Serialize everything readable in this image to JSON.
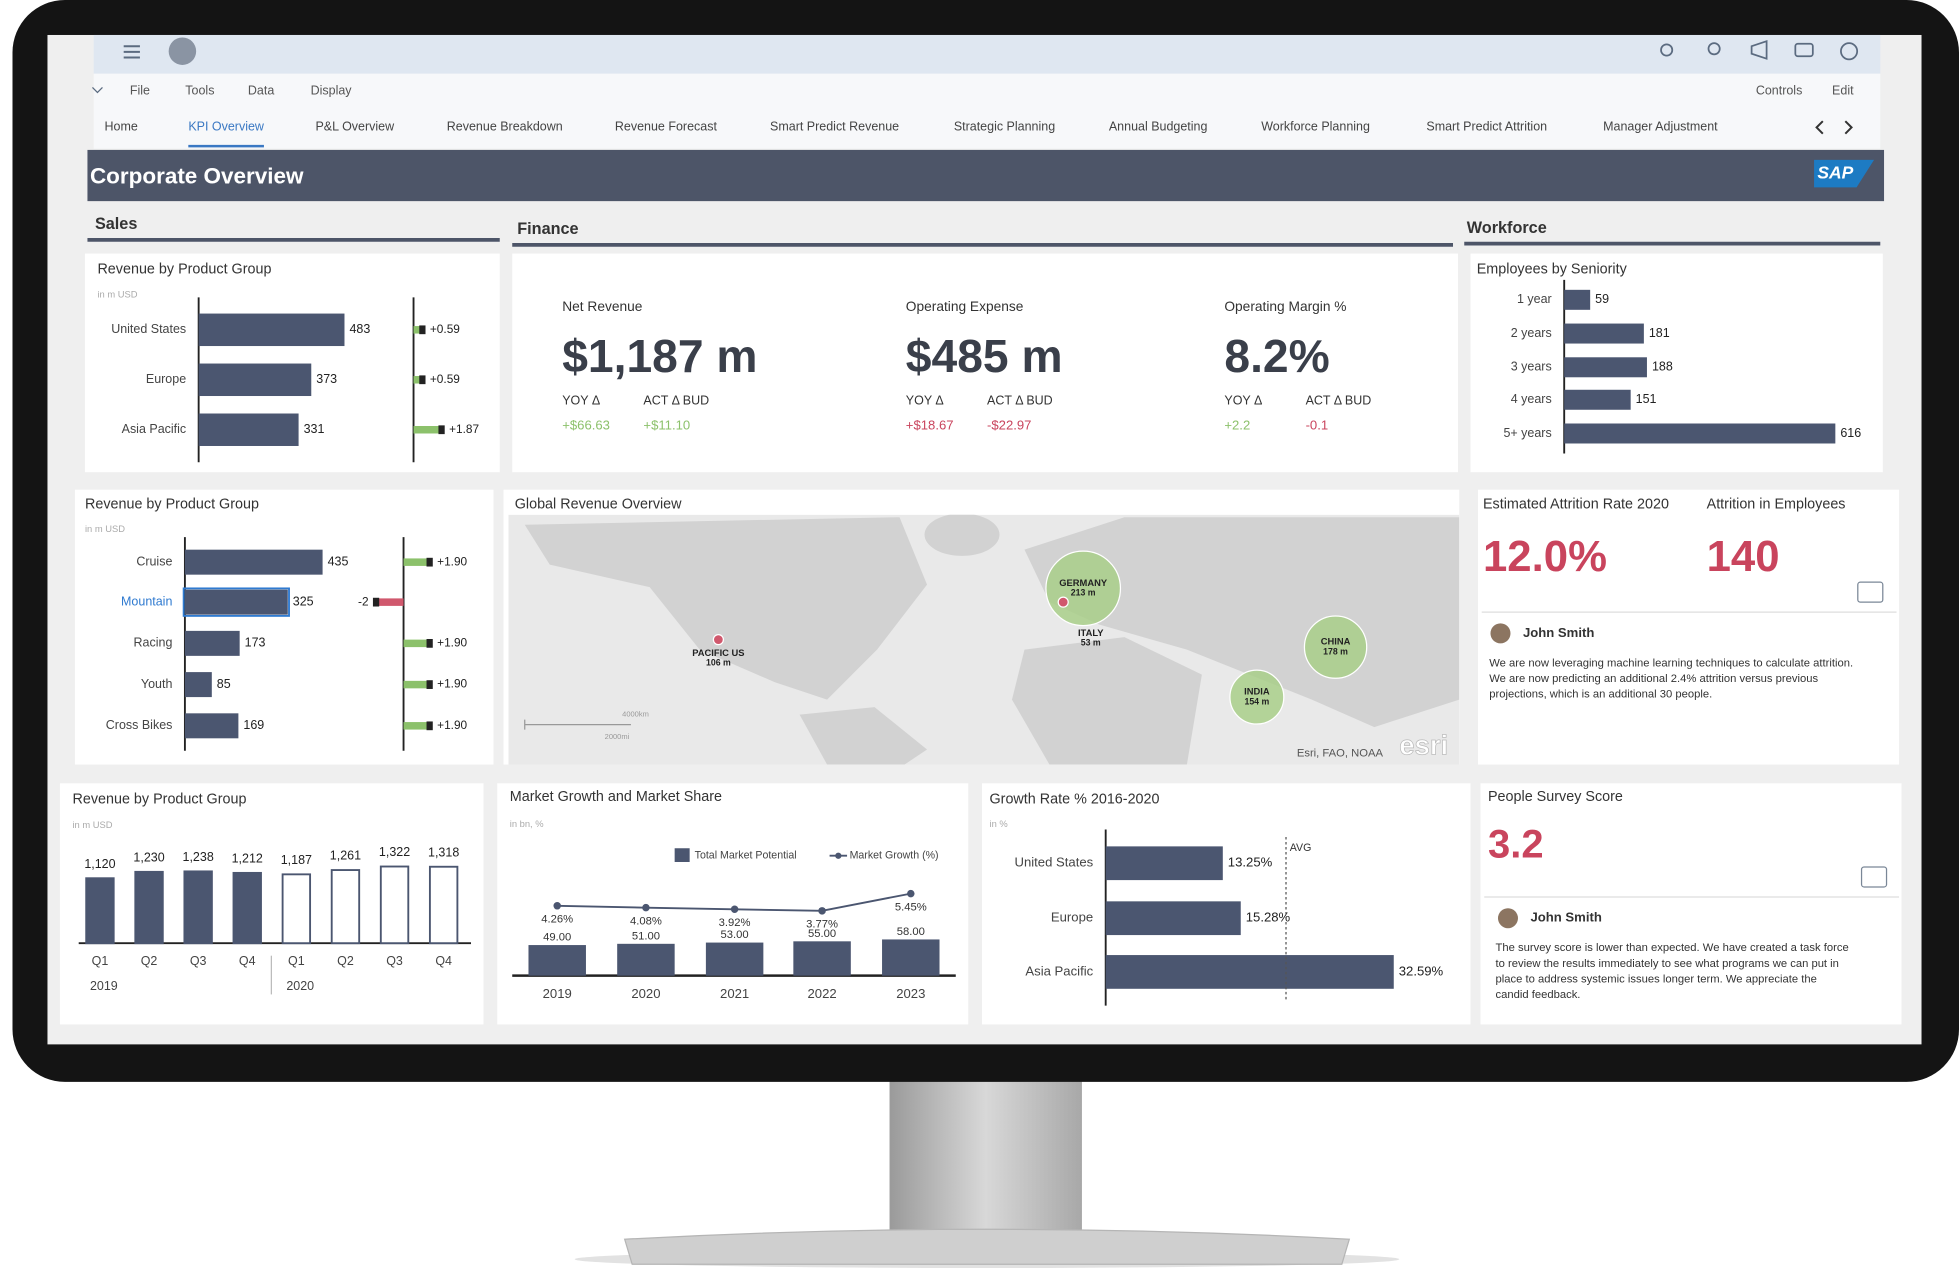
{
  "shell": {
    "menu": [
      "File",
      "Tools",
      "Data",
      "Display"
    ],
    "menu_right": [
      "Controls",
      "Edit"
    ],
    "tabs": [
      "Home",
      "KPI Overview",
      "P&L Overview",
      "Revenue Breakdown",
      "Revenue Forecast",
      "Smart Predict Revenue",
      "Strategic Planning",
      "Annual Budgeting",
      "Workforce Planning",
      "Smart Predict Attrition",
      "Manager Adjustment"
    ],
    "active_tab": 1
  },
  "page_title": "Corporate Overview",
  "logo": "SAP",
  "sections": [
    "Sales",
    "Finance",
    "Workforce"
  ],
  "sales_region": {
    "title": "Revenue by Product Group",
    "subtitle": "in m USD",
    "categories": [
      "United States",
      "Europe",
      "Asia Pacific"
    ],
    "values": [
      483,
      373,
      331
    ],
    "xlim": [
      0,
      600
    ],
    "variance": [
      0.59,
      0.59,
      1.87
    ],
    "variance_labels": [
      "+0.59",
      "+0.59",
      "+1.87"
    ],
    "variance_lim": [
      -2,
      2
    ],
    "color": "#4b5670"
  },
  "sales_product": {
    "title": "Revenue by Product Group",
    "subtitle": "in m USD",
    "categories": [
      "Cruise",
      "Mountain",
      "Racing",
      "Youth",
      "Cross Bikes"
    ],
    "values": [
      435,
      325,
      173,
      85,
      169
    ],
    "xlim": [
      0,
      600
    ],
    "variance": [
      1.9,
      -2,
      1.9,
      1.9,
      1.9
    ],
    "variance_labels": [
      "+1.90",
      "-2",
      "+1.90",
      "+1.90",
      "+1.90"
    ],
    "variance_lim": [
      -2,
      2
    ],
    "selected": 1,
    "color": "#4b5670"
  },
  "sales_quarter": {
    "title": "Revenue by Product Group",
    "subtitle": "in m USD",
    "ylim": [
      0,
      1400
    ],
    "color": "#4b5670",
    "groups": [
      {
        "label": "2019",
        "style": "solid",
        "categories": [
          "Q1",
          "Q2",
          "Q3",
          "Q4"
        ],
        "values": [
          1120,
          1230,
          1238,
          1212
        ],
        "value_labels": [
          "1,120",
          "1,230",
          "1,238",
          "1,212"
        ]
      },
      {
        "label": "2020",
        "style": "outline",
        "categories": [
          "Q1",
          "Q2",
          "Q3",
          "Q4"
        ],
        "values": [
          1187,
          1261,
          1322,
          1318
        ],
        "value_labels": [
          "1,187",
          "1,261",
          "1,322",
          "1,318"
        ]
      }
    ]
  },
  "finance": {
    "kpis": [
      {
        "title": "Net Revenue",
        "value": "$1,187 m",
        "deltas": [
          {
            "label": "YOY Δ",
            "value": "+$66.63",
            "color": "#8cc16b"
          },
          {
            "label": "ACT Δ BUD",
            "value": "+$11.10",
            "color": "#8cc16b"
          }
        ]
      },
      {
        "title": "Operating Expense",
        "value": "$485 m",
        "deltas": [
          {
            "label": "YOY Δ",
            "value": "+$18.67",
            "color": "#c9445d"
          },
          {
            "label": "ACT Δ BUD",
            "value": "-$22.97",
            "color": "#c9445d"
          }
        ]
      },
      {
        "title": "Operating Margin %",
        "value": "8.2%",
        "deltas": [
          {
            "label": "YOY Δ",
            "value": "+2.2",
            "color": "#8cc16b"
          },
          {
            "label": "ACT Δ BUD",
            "value": "-0.1",
            "color": "#c9445d"
          }
        ]
      }
    ]
  },
  "employees": {
    "title": "Employees by Seniority",
    "categories": [
      "1 year",
      "2 years",
      "3 years",
      "4 years",
      "5+ years"
    ],
    "values": [
      59,
      181,
      188,
      151,
      616
    ],
    "xlim": [
      0,
      650
    ],
    "color": "#4b5670"
  },
  "map": {
    "title": "Global Revenue Overview",
    "bubbles": [
      {
        "name": "PACIFIC US",
        "value": 106,
        "value_label": "106 m",
        "marker": "dot"
      },
      {
        "name": "GERMANY",
        "value": 213,
        "value_label": "213 m",
        "marker": "bubble"
      },
      {
        "name": "ITALY",
        "value": 53,
        "value_label": "53 m",
        "marker": "dot"
      },
      {
        "name": "CHINA",
        "value": 178,
        "value_label": "178 m",
        "marker": "bubble"
      },
      {
        "name": "INDIA",
        "value": 154,
        "value_label": "154 m",
        "marker": "bubble"
      }
    ],
    "scale_labels": [
      "4000km",
      "2000mi"
    ],
    "credits": "Esri, FAO, NOAA",
    "logo": "esri"
  },
  "attrition": {
    "kpis": [
      {
        "title": "Estimated Attrition Rate 2020",
        "value": "12.0%"
      },
      {
        "title": "Attrition in Employees",
        "value": "140"
      }
    ],
    "comment": {
      "author": "John Smith",
      "lines": [
        "We are now leveraging machine learning techniques to calculate attrition.",
        "We are now predicting an additional 2.4% attrition versus previous",
        "projections, which is an additional 30 people."
      ]
    }
  },
  "market": {
    "title": "Market Growth and Market Share",
    "subtitle": "in bn, %",
    "legend": [
      "Total Market Potential",
      "Market Growth (%)"
    ],
    "categories": [
      "2019",
      "2020",
      "2021",
      "2022",
      "2023"
    ],
    "values": [
      49,
      51,
      53,
      55,
      58
    ],
    "value_labels": [
      "49.00",
      "51.00",
      "53.00",
      "55.00",
      "58.00"
    ],
    "growth": [
      4.26,
      4.08,
      3.92,
      3.77,
      5.45
    ],
    "growth_labels": [
      "4.26%",
      "4.08%",
      "3.92%",
      "3.77%",
      "5.45%"
    ],
    "ylim": [
      0,
      120
    ],
    "y2lim": [
      0,
      10
    ],
    "color": "#4b5670"
  },
  "growth_rate": {
    "title": "Growth Rate % 2016-2020",
    "subtitle": "in %",
    "categories": [
      "United States",
      "Europe",
      "Asia Pacific"
    ],
    "values": [
      13.25,
      15.28,
      32.59
    ],
    "value_labels": [
      "13.25%",
      "15.28%",
      "32.59%"
    ],
    "xlim": [
      0,
      40
    ],
    "avg": 20.4,
    "avg_label": "AVG",
    "color": "#4b5670"
  },
  "survey": {
    "title": "People Survey Score",
    "value": "3.2",
    "comment": {
      "author": "John Smith",
      "lines": [
        "The survey score is lower than expected.  We have created a task force",
        "to review the results immediately to see what programs we can put in",
        "place to address systemic issues longer term.  We appreciate the",
        "candid feedback."
      ]
    }
  }
}
